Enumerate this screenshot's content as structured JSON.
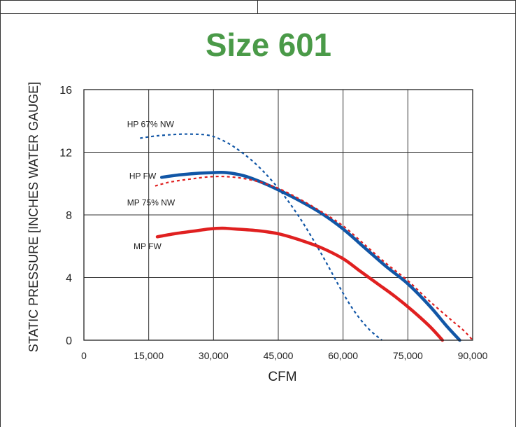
{
  "chart_data": {
    "type": "line",
    "title": "Size 601",
    "xlabel": "CFM",
    "ylabel": "STATIC PRESSURE [INCHES WATER GAUGE]",
    "xlim": [
      0,
      90000
    ],
    "ylim": [
      0,
      16
    ],
    "x_ticks": [
      "0",
      "15,000",
      "30,000",
      "45,000",
      "60,000",
      "75,000",
      "90,000"
    ],
    "y_ticks": [
      "0",
      "4",
      "8",
      "12",
      "16"
    ],
    "grid": true,
    "colors": {
      "title": "#4a9a48",
      "blue": "#1156a6",
      "red": "#e02020"
    },
    "series": [
      {
        "name": "HP 67% NW",
        "color": "#1156a6",
        "style": "dotted",
        "x": [
          13000,
          17000,
          22000,
          26000,
          28500,
          31000,
          35000,
          40000,
          45000,
          50000,
          55000,
          60000,
          63000,
          66000,
          69000
        ],
        "y": [
          12.9,
          13.05,
          13.15,
          13.15,
          13.1,
          12.9,
          12.3,
          11.2,
          9.7,
          7.8,
          5.5,
          3.0,
          1.7,
          0.7,
          0
        ]
      },
      {
        "name": "HP FW",
        "color": "#1156a6",
        "style": "solid",
        "x": [
          18000,
          22000,
          26000,
          30000,
          33000,
          37000,
          41000,
          45000,
          50000,
          55000,
          60000,
          65000,
          70000,
          75000,
          80000,
          84000,
          87000
        ],
        "y": [
          10.4,
          10.55,
          10.65,
          10.7,
          10.7,
          10.5,
          10.1,
          9.6,
          8.9,
          8.1,
          7.1,
          5.9,
          4.7,
          3.6,
          2.2,
          0.9,
          0
        ]
      },
      {
        "name": "MP 75% NW",
        "color": "#e02020",
        "style": "dotted",
        "x": [
          16500,
          20000,
          25000,
          30000,
          35000,
          40000,
          45000,
          50000,
          55000,
          60000,
          65000,
          70000,
          75000,
          80000,
          85000,
          88000,
          90000
        ],
        "y": [
          9.85,
          10.1,
          10.3,
          10.45,
          10.4,
          10.15,
          9.7,
          9.0,
          8.2,
          7.3,
          6.1,
          4.9,
          3.8,
          2.5,
          1.3,
          0.6,
          0
        ]
      },
      {
        "name": "MP FW",
        "color": "#e02020",
        "style": "solid",
        "x": [
          17000,
          21000,
          25000,
          29000,
          32000,
          35000,
          40000,
          45000,
          50000,
          55000,
          60000,
          64000,
          68000,
          72000,
          76000,
          80000,
          83000
        ],
        "y": [
          6.6,
          6.8,
          6.95,
          7.1,
          7.15,
          7.1,
          7.0,
          6.8,
          6.4,
          5.9,
          5.2,
          4.4,
          3.6,
          2.8,
          1.9,
          0.9,
          0
        ]
      }
    ],
    "series_labels": [
      {
        "text": "HP 67% NW",
        "x": 10000,
        "y": 13.6
      },
      {
        "text": "HP FW",
        "x": 10500,
        "y": 10.3
      },
      {
        "text": "MP 75% NW",
        "x": 10000,
        "y": 8.6
      },
      {
        "text": "MP FW",
        "x": 11500,
        "y": 5.8
      }
    ]
  }
}
